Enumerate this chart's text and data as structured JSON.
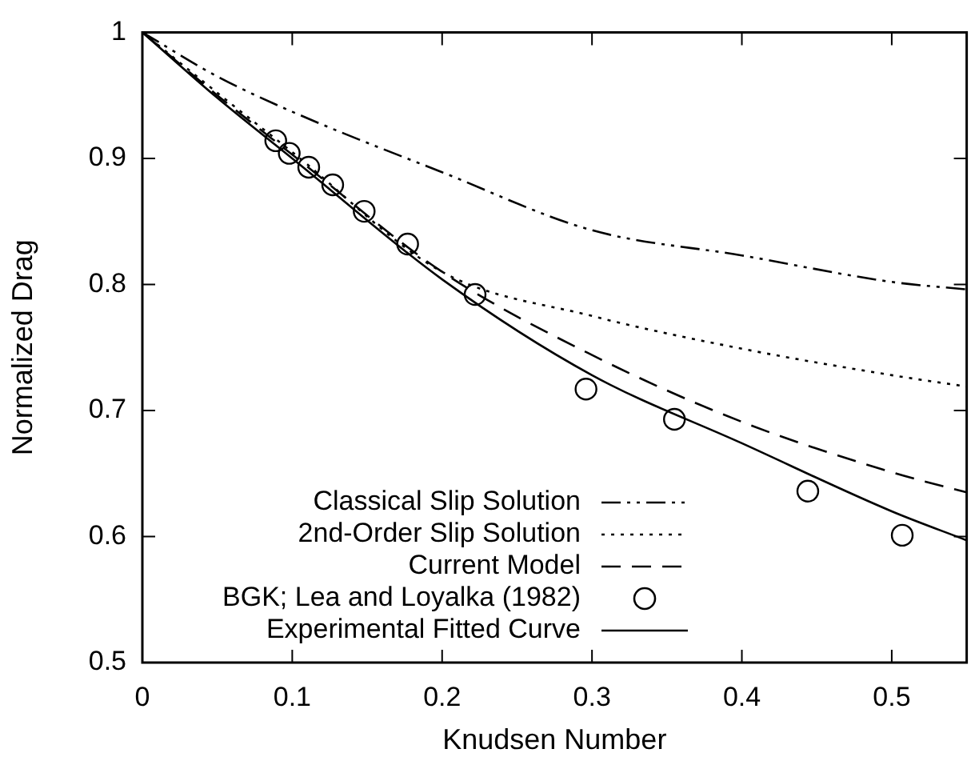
{
  "chart_data": {
    "type": "line",
    "xlabel": "Knudsen Number",
    "ylabel": "Normalized Drag",
    "xlim": [
      0,
      0.55
    ],
    "xticks": [
      0,
      0.1,
      0.2,
      0.3,
      0.4,
      0.5
    ],
    "ylim": [
      0.5,
      1
    ],
    "yticks": [
      0.5,
      0.6,
      0.7,
      0.8,
      0.9,
      1
    ],
    "grid": false,
    "legend": "bottom left",
    "marker": "none",
    "series": [
      {
        "name": "Classical Slip Solution",
        "line_style": "dashdot",
        "color": "#000000",
        "x": [
          0,
          0.05,
          0.1,
          0.2,
          0.3,
          0.4,
          0.5,
          0.55
        ],
        "values": [
          1,
          0.965,
          0.937,
          0.889,
          0.843,
          0.823,
          0.802,
          0.796
        ]
      },
      {
        "name": "2nd-Order Slip Solution",
        "line_style": "dotted",
        "color": "#000000",
        "x": [
          0,
          0.05,
          0.1,
          0.2,
          0.3,
          0.4,
          0.5,
          0.55
        ],
        "values": [
          1,
          0.952,
          0.905,
          0.81,
          0.775,
          0.749,
          0.728,
          0.719
        ]
      },
      {
        "name": "Current Model",
        "line_style": "dashed",
        "color": "#000000",
        "x": [
          0,
          0.05,
          0.1,
          0.2,
          0.3,
          0.4,
          0.5,
          0.55
        ],
        "values": [
          1,
          0.95,
          0.903,
          0.81,
          0.744,
          0.691,
          0.651,
          0.635
        ]
      },
      {
        "name": "BGK; Lea and Loyalka (1982)",
        "type": "scatter",
        "marker": "circle",
        "color": "#000000",
        "x": [
          0.089,
          0.098,
          0.111,
          0.127,
          0.148,
          0.177,
          0.222,
          0.296,
          0.355,
          0.444,
          0.507
        ],
        "values": [
          0.914,
          0.904,
          0.893,
          0.879,
          0.858,
          0.832,
          0.792,
          0.717,
          0.693,
          0.636,
          0.601
        ]
      },
      {
        "name": "Experimental Fitted Curve",
        "line_style": "solid",
        "color": "#000000",
        "x": [
          0,
          0.05,
          0.1,
          0.2,
          0.3,
          0.4,
          0.5,
          0.55
        ],
        "values": [
          1,
          0.948,
          0.9,
          0.804,
          0.728,
          0.674,
          0.62,
          0.597
        ]
      }
    ]
  }
}
